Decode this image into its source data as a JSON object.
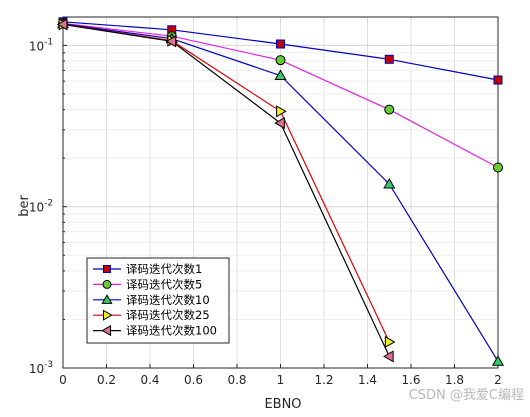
{
  "chart_data": {
    "type": "line",
    "xlabel": "EBNO",
    "ylabel": "ber",
    "xlim": [
      0,
      2
    ],
    "ylim": [
      0.001,
      0.15
    ],
    "yscale": "log",
    "grid": true,
    "legend_position": "bottom-left",
    "xticks": [
      "0",
      "0.2",
      "0.4",
      "0.6",
      "0.8",
      "1",
      "1.2",
      "1.4",
      "1.6",
      "1.8",
      "2"
    ],
    "yticks": [
      {
        "value": 0.1,
        "base": "10",
        "exp": "-1"
      },
      {
        "value": 0.01,
        "base": "10",
        "exp": "-2"
      },
      {
        "value": 0.001,
        "base": "10",
        "exp": "-3"
      }
    ],
    "series": [
      {
        "name": "译码迭代次数1",
        "color": "#0000c0",
        "fill": "#c00000",
        "marker": "square",
        "x": [
          0,
          0.5,
          1,
          1.5,
          2
        ],
        "y": [
          0.14,
          0.125,
          0.102,
          0.082,
          0.061
        ]
      },
      {
        "name": "译码迭代次数5",
        "color": "#e020e0",
        "fill": "#66cc33",
        "marker": "circle",
        "x": [
          0,
          0.5,
          1,
          1.5,
          2
        ],
        "y": [
          0.137,
          0.114,
          0.081,
          0.04,
          0.0175
        ]
      },
      {
        "name": "译码迭代次数10",
        "color": "#0000c0",
        "fill": "#33cc66",
        "marker": "triangle-up",
        "x": [
          0,
          0.5,
          1,
          1.5,
          2
        ],
        "y": [
          0.136,
          0.11,
          0.065,
          0.0138,
          0.0011
        ]
      },
      {
        "name": "译码迭代次数25",
        "color": "#e00000",
        "fill": "#eeee22",
        "marker": "triangle-right",
        "x": [
          0,
          0.5,
          1,
          1.5
        ],
        "y": [
          0.135,
          0.107,
          0.039,
          0.00145
        ]
      },
      {
        "name": "译码迭代次数100",
        "color": "#000000",
        "fill": "#e07090",
        "marker": "triangle-left",
        "x": [
          0,
          0.5,
          1,
          1.5
        ],
        "y": [
          0.135,
          0.106,
          0.033,
          0.00118
        ]
      }
    ]
  },
  "watermark": "CSDN @我爱C编程"
}
